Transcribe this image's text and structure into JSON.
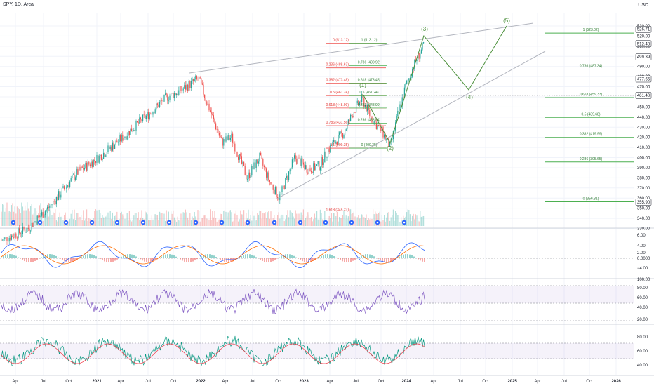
{
  "header": {
    "symbol": "SPY, 1D, Arca",
    "currency": "USD"
  },
  "colors": {
    "up": "#26a69a",
    "down": "#ef5350",
    "fib_label": "#e53935",
    "fib_label_green": "#2e7d32",
    "fib_line_green": "#4caf50",
    "wave": "#4a8f3a",
    "trend": "#b2b5be",
    "rsi": "#7e57c2",
    "macd_fast": "#2962ff",
    "macd_slow": "#ff6d00",
    "stoch_k": "#089981",
    "stoch_d": "#f23645"
  },
  "price_axis": {
    "ticks": [
      "530.00",
      "520.00",
      "510.00",
      "500.00",
      "490.00",
      "480.00",
      "470.00",
      "460.00",
      "450.00",
      "440.00",
      "430.00",
      "420.00",
      "410.00",
      "400.00",
      "390.00",
      "380.00",
      "370.00",
      "360.00",
      "350.00",
      "340.00",
      "330.00"
    ],
    "badges": [
      {
        "label": "526.71",
        "price": 526.71
      },
      {
        "label": "512.48",
        "price": 512.48
      },
      {
        "label": "499.39",
        "price": 499.39
      },
      {
        "label": "477.65",
        "price": 477.65
      },
      {
        "label": "461.40",
        "price": 461.4
      },
      {
        "label": "355.90",
        "price": 355.9
      }
    ]
  },
  "fib_retracement": [
    {
      "label": "0 (513.12)",
      "price": 513.12
    },
    {
      "label": "0.236 (488.63)",
      "price": 488.63
    },
    {
      "label": "0.382 (473.48)",
      "price": 473.48
    },
    {
      "label": "0.5 (461.24)",
      "price": 461.24
    },
    {
      "label": "0.618 (448.99)",
      "price": 448.99
    },
    {
      "label": "0.786 (431.56)",
      "price": 431.56
    },
    {
      "label": "1 (409.35)",
      "price": 409.35
    },
    {
      "label": "1.618 (345.23)",
      "price": 345.23
    }
  ],
  "fib_inner": [
    {
      "label": "1 (513.12)",
      "price": 513.12
    },
    {
      "label": "0.786 (490.92)",
      "price": 490.92
    },
    {
      "label": "0.618 (473.48)",
      "price": 473.48
    },
    {
      "label": "0.5 (461.24)",
      "price": 461.24
    },
    {
      "label": "0.382 (448.99)",
      "price": 448.99
    },
    {
      "label": "0.236 (433.84)",
      "price": 433.84
    },
    {
      "label": "0 (409.35)",
      "price": 409.35
    }
  ],
  "fib_extension": [
    {
      "label": "1 (523.02)",
      "price": 523.02
    },
    {
      "label": "0.786 (487.34)",
      "price": 487.34
    },
    {
      "label": "0.618 (459.33)",
      "price": 459.33
    },
    {
      "label": "0.5 (439.68)",
      "price": 439.68
    },
    {
      "label": "0.382 (419.99)",
      "price": 419.99
    },
    {
      "label": "0.236 (395.65)",
      "price": 395.65
    },
    {
      "label": "0 (356.31)",
      "price": 356.31
    }
  ],
  "waves": [
    {
      "label": "(1)"
    },
    {
      "label": "(2)"
    },
    {
      "label": "(3)"
    },
    {
      "label": "(4)"
    },
    {
      "label": "(5)"
    }
  ],
  "macd_axis": [
    "6.00",
    "4.00",
    "2.00",
    "0.0000",
    "−4.00"
  ],
  "rsi_axis": [
    "100.00",
    "80.00",
    "60.00",
    "40.00",
    "20.00"
  ],
  "stoch_axis": [
    "80.00",
    "60.00",
    "40.00"
  ],
  "time_axis": [
    "Apr",
    "Jul",
    "Oct",
    "2021",
    "Apr",
    "Jul",
    "Oct",
    "2022",
    "Apr",
    "Jul",
    "Oct",
    "2023",
    "Apr",
    "Jul",
    "Oct",
    "2024",
    "Apr",
    "Jul",
    "Oct",
    "2025",
    "Apr",
    "Jul",
    "Oct",
    "2026"
  ]
}
